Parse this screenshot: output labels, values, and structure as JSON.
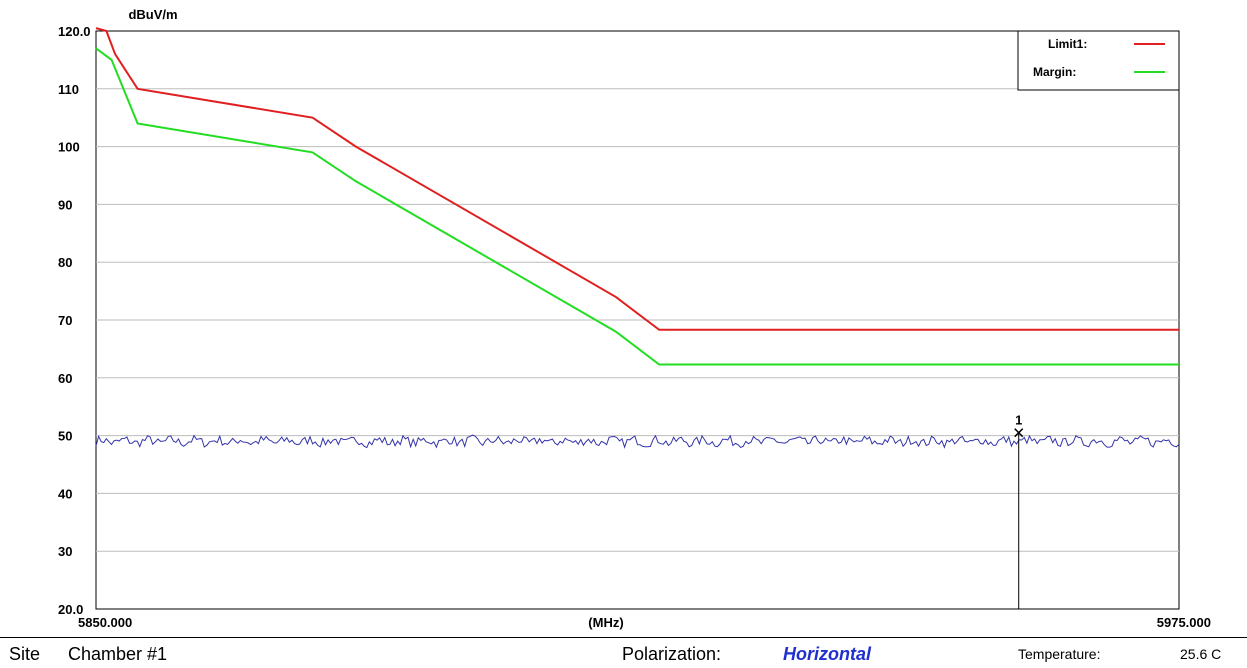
{
  "chart_data": {
    "type": "line",
    "y_unit": "dBuV/m",
    "x_unit": "(MHz)",
    "xlim": [
      5850.0,
      5975.0
    ],
    "ylim": [
      20.0,
      120.0
    ],
    "x_tick_labels": [
      "5850.000",
      "5975.000"
    ],
    "y_tick_labels": [
      "120.0",
      "110",
      "100",
      "90",
      "80",
      "70",
      "60",
      "50",
      "40",
      "30",
      "20.0"
    ],
    "y_ticks": [
      120,
      110,
      100,
      90,
      80,
      70,
      60,
      50,
      40,
      30,
      20
    ],
    "grid": true,
    "legend_position": "top-right",
    "series": [
      {
        "name": "Limit1:",
        "color": "#e02020",
        "x": [
          5850,
          5851.2,
          5852.2,
          5854.8,
          5875,
          5880,
          5910,
          5915,
          5975
        ],
        "y": [
          122,
          120,
          116,
          110,
          105,
          100,
          74,
          68.3,
          68.3
        ]
      },
      {
        "name": "Margin:",
        "color": "#22dd22",
        "x": [
          5850,
          5851.8,
          5854.8,
          5875,
          5880,
          5910,
          5915,
          5975
        ],
        "y": [
          117,
          115,
          104,
          99,
          94,
          68,
          62.3,
          62.3
        ]
      },
      {
        "name": "",
        "color": "#3333aa",
        "x": [
          5850,
          5975
        ],
        "y": [
          49,
          49
        ]
      }
    ],
    "markers": [
      {
        "label": "1",
        "x": 5956.5,
        "y": 50.5
      }
    ]
  },
  "footer": {
    "site_label": "Site",
    "site_value": "Chamber #1",
    "polarization_label": "Polarization:",
    "polarization_value": "Horizontal",
    "temperature_label": "Temperature:",
    "temperature_value": "25.6 C"
  }
}
